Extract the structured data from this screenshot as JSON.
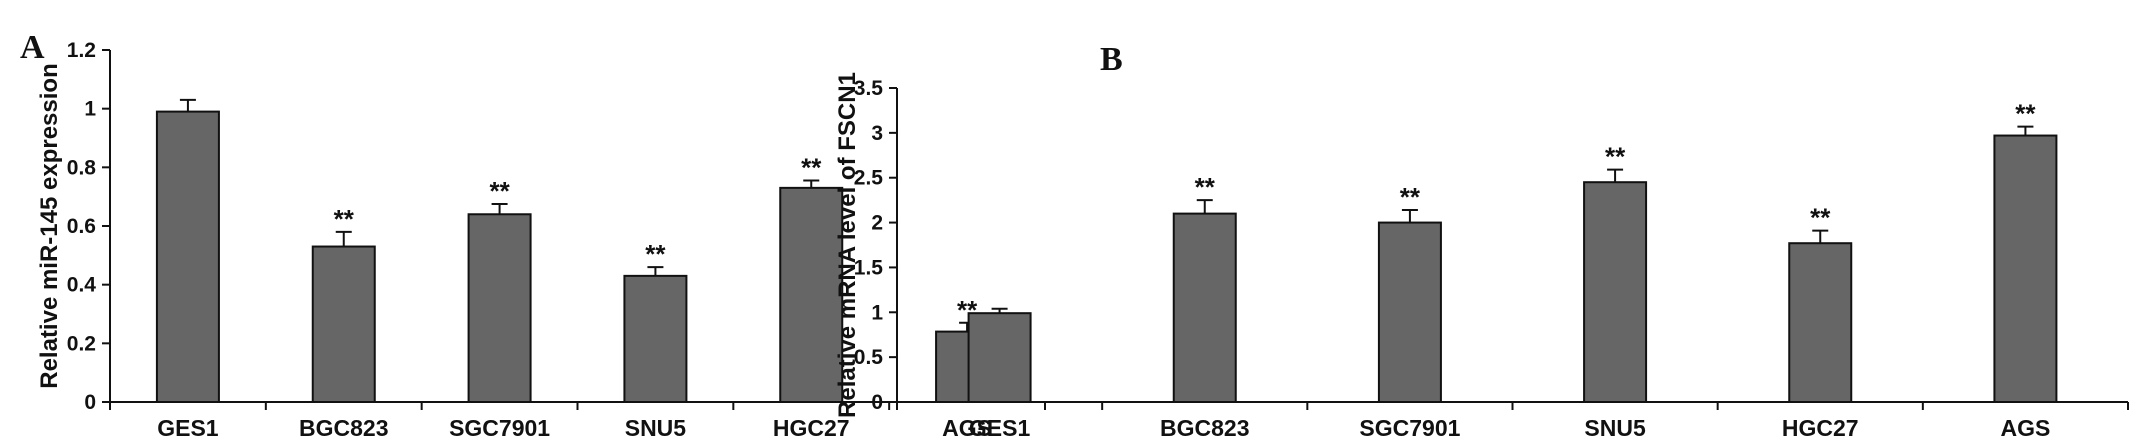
{
  "panels": [
    {
      "id": "A",
      "letter": "A",
      "chart_data": {
        "type": "bar",
        "title": "",
        "xlabel": "",
        "ylabel": "Relative miR-145 expression",
        "ylim": [
          0,
          1.2
        ],
        "yticks": [
          "0",
          "0.2",
          "0.4",
          "0.6",
          "0.8",
          "1",
          "1.2"
        ],
        "categories": [
          "GES1",
          "BGC823",
          "SGC7901",
          "SNU5",
          "HGC27",
          "AGS"
        ],
        "values": [
          0.99,
          0.53,
          0.64,
          0.43,
          0.73,
          0.24
        ],
        "errors": [
          0.04,
          0.05,
          0.035,
          0.03,
          0.025,
          0.03
        ],
        "annotations": [
          "",
          "**",
          "**",
          "**",
          "**",
          "**"
        ],
        "bar_color": "#666666",
        "grid": false
      }
    },
    {
      "id": "B",
      "letter": "B",
      "chart_data": {
        "type": "bar",
        "title": "",
        "xlabel": "",
        "ylabel": "Relative mRNA level of FSCN1",
        "ylim": [
          0,
          3.5
        ],
        "yticks": [
          "0",
          "0.5",
          "1",
          "1.5",
          "2",
          "2.5",
          "3",
          "3.5"
        ],
        "categories": [
          "GES1",
          "BGC823",
          "SGC7901",
          "SNU5",
          "HGC27",
          "AGS"
        ],
        "values": [
          0.99,
          2.1,
          2.0,
          2.45,
          1.77,
          2.97
        ],
        "errors": [
          0.05,
          0.15,
          0.14,
          0.14,
          0.14,
          0.1
        ],
        "annotations": [
          "",
          "**",
          "**",
          "**",
          "**",
          "**"
        ],
        "bar_color": "#666666",
        "grid": false
      }
    }
  ]
}
